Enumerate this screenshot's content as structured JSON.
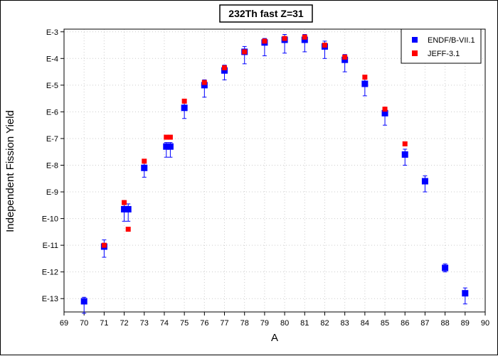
{
  "chart_data": {
    "type": "scatter",
    "title": "232Th fast Z=31",
    "xlabel": "A",
    "ylabel": "Independent Fission Yield",
    "xlim": [
      69,
      90
    ],
    "ylim_log10": [
      -13.5,
      -2.9
    ],
    "y_scale": "log",
    "x_ticks": [
      "69",
      "70",
      "71",
      "72",
      "73",
      "74",
      "75",
      "76",
      "77",
      "78",
      "79",
      "80",
      "81",
      "82",
      "83",
      "84",
      "85",
      "86",
      "87",
      "88",
      "89",
      "90"
    ],
    "y_ticks": [
      {
        "label": "E-3",
        "exp": -3
      },
      {
        "label": "E-4",
        "exp": -4
      },
      {
        "label": "E-5",
        "exp": -5
      },
      {
        "label": "E-6",
        "exp": -6
      },
      {
        "label": "E-7",
        "exp": -7
      },
      {
        "label": "E-8",
        "exp": -8
      },
      {
        "label": "E-9",
        "exp": -9
      },
      {
        "label": "E-10",
        "exp": -10
      },
      {
        "label": "E-11",
        "exp": -11
      },
      {
        "label": "E-12",
        "exp": -12
      },
      {
        "label": "E-13",
        "exp": -13
      }
    ],
    "grid": true,
    "legend_position": "top-right",
    "series": [
      {
        "name": "ENDF/B-VII.1",
        "color": "#0000ff",
        "points": [
          {
            "x": 70,
            "y_exp": -13.1,
            "err_lo": -13.55,
            "err_hi": -12.95
          },
          {
            "x": 71,
            "y_exp": -11.05,
            "err_lo": -11.45,
            "err_hi": -10.8
          },
          {
            "x": 72,
            "y_exp": -9.65,
            "err_lo": -10.1,
            "err_hi": -9.45
          },
          {
            "x": 72.2,
            "y_exp": -9.65,
            "err_lo": -10.1,
            "err_hi": -9.45
          },
          {
            "x": 73,
            "y_exp": -8.1,
            "err_lo": -8.45,
            "err_hi": -7.9
          },
          {
            "x": 74.1,
            "y_exp": -7.3,
            "err_lo": -7.7,
            "err_hi": -7.15
          },
          {
            "x": 74.3,
            "y_exp": -7.3,
            "err_lo": -7.7,
            "err_hi": -7.15
          },
          {
            "x": 75,
            "y_exp": -5.85,
            "err_lo": -6.25,
            "err_hi": -5.65
          },
          {
            "x": 76,
            "y_exp": -5.0,
            "err_lo": -5.45,
            "err_hi": -4.8
          },
          {
            "x": 77,
            "y_exp": -4.45,
            "err_lo": -4.8,
            "err_hi": -4.25
          },
          {
            "x": 78,
            "y_exp": -3.75,
            "err_lo": -4.2,
            "err_hi": -3.55
          },
          {
            "x": 79,
            "y_exp": -3.4,
            "err_lo": -3.9,
            "err_hi": -3.25
          },
          {
            "x": 80,
            "y_exp": -3.3,
            "err_lo": -3.8,
            "err_hi": -3.1
          },
          {
            "x": 81,
            "y_exp": -3.3,
            "err_lo": -3.75,
            "err_hi": -3.1
          },
          {
            "x": 82,
            "y_exp": -3.55,
            "err_lo": -4.0,
            "err_hi": -3.35
          },
          {
            "x": 83,
            "y_exp": -4.05,
            "err_lo": -4.5,
            "err_hi": -3.85
          },
          {
            "x": 84,
            "y_exp": -4.95,
            "err_lo": -5.4,
            "err_hi": -4.75
          },
          {
            "x": 85,
            "y_exp": -6.05,
            "err_lo": -6.5,
            "err_hi": -5.85
          },
          {
            "x": 86,
            "y_exp": -7.6,
            "err_lo": -8.0,
            "err_hi": -7.4
          },
          {
            "x": 87,
            "y_exp": -8.6,
            "err_lo": -9.0,
            "err_hi": -8.4
          },
          {
            "x": 88,
            "y_exp": -11.85,
            "err_lo": -12.0,
            "err_hi": -11.7
          },
          {
            "x": 89,
            "y_exp": -12.8,
            "err_lo": -13.2,
            "err_hi": -12.6
          }
        ]
      },
      {
        "name": "JEFF-3.1",
        "color": "#ff0000",
        "points": [
          {
            "x": 71,
            "y_exp": -11.0,
            "err_lo": -11.05,
            "err_hi": -10.95
          },
          {
            "x": 72,
            "y_exp": -9.4,
            "err_lo": -9.45,
            "err_hi": -9.35
          },
          {
            "x": 72.2,
            "y_exp": -10.4,
            "err_lo": -10.45,
            "err_hi": -10.35
          },
          {
            "x": 73,
            "y_exp": -7.85,
            "err_lo": -7.9,
            "err_hi": -7.8
          },
          {
            "x": 74.1,
            "y_exp": -6.95,
            "err_lo": -7.0,
            "err_hi": -6.9
          },
          {
            "x": 74.3,
            "y_exp": -6.95,
            "err_lo": -7.0,
            "err_hi": -6.9
          },
          {
            "x": 75,
            "y_exp": -5.6,
            "err_lo": -5.65,
            "err_hi": -5.55
          },
          {
            "x": 76,
            "y_exp": -4.9,
            "err_lo": -4.95,
            "err_hi": -4.85
          },
          {
            "x": 77,
            "y_exp": -4.35,
            "err_lo": -4.4,
            "err_hi": -4.3
          },
          {
            "x": 78,
            "y_exp": -3.75,
            "err_lo": -3.8,
            "err_hi": -3.7
          },
          {
            "x": 79,
            "y_exp": -3.35,
            "err_lo": -3.4,
            "err_hi": -3.3
          },
          {
            "x": 80,
            "y_exp": -3.25,
            "err_lo": -3.3,
            "err_hi": -3.2
          },
          {
            "x": 81,
            "y_exp": -3.2,
            "err_lo": -3.25,
            "err_hi": -3.15
          },
          {
            "x": 82,
            "y_exp": -3.5,
            "err_lo": -3.55,
            "err_hi": -3.45
          },
          {
            "x": 83,
            "y_exp": -3.95,
            "err_lo": -4.0,
            "err_hi": -3.9
          },
          {
            "x": 84,
            "y_exp": -4.7,
            "err_lo": -4.75,
            "err_hi": -4.65
          },
          {
            "x": 85,
            "y_exp": -5.9,
            "err_lo": -5.95,
            "err_hi": -5.85
          },
          {
            "x": 86,
            "y_exp": -7.2,
            "err_lo": -7.25,
            "err_hi": -7.15
          }
        ]
      }
    ]
  }
}
